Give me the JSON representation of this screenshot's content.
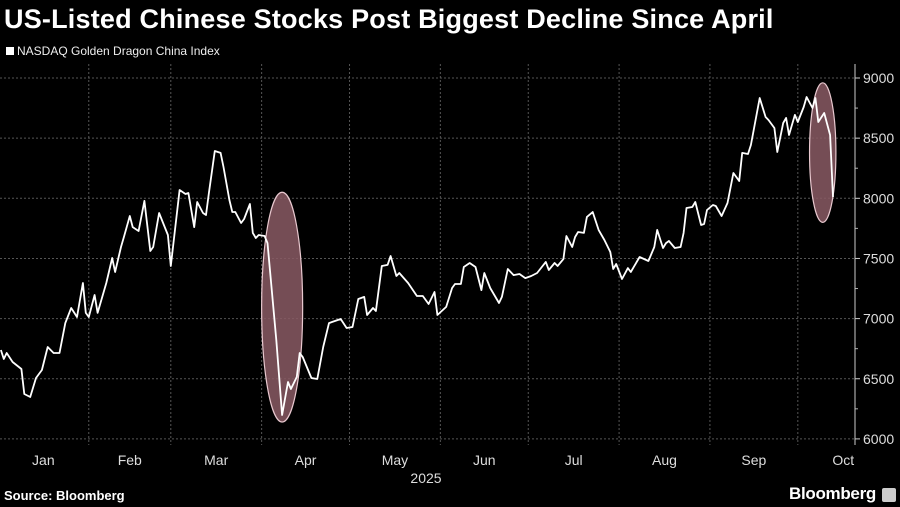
{
  "header": {
    "title": "US-Listed Chinese Stocks Post Biggest Decline Since April"
  },
  "footer": {
    "source": "Source: Bloomberg",
    "brand": "Bloomberg"
  },
  "colors": {
    "background": "#000000",
    "line": "#ffffff",
    "highlight": "#8a5a64",
    "grid": "#555555"
  },
  "chart_data": {
    "type": "line",
    "title": "US-Listed Chinese Stocks Post Biggest Decline Since April",
    "xlabel": "2025",
    "ylabel": "",
    "ylim": [
      5950,
      9100
    ],
    "yticks": [
      6000,
      6500,
      7000,
      7500,
      8000,
      8500,
      9000
    ],
    "ytick_labels": [
      "6000",
      "6500",
      "7000",
      "7500",
      "8000",
      "8500",
      "9000"
    ],
    "x_unit": "day of year 2025",
    "months": [
      {
        "label": "Jan",
        "start": 1
      },
      {
        "label": "Feb",
        "start": 32
      },
      {
        "label": "Mar",
        "start": 60
      },
      {
        "label": "Apr",
        "start": 91
      },
      {
        "label": "May",
        "start": 121
      },
      {
        "label": "Jun",
        "start": 152
      },
      {
        "label": "Jul",
        "start": 182
      },
      {
        "label": "Aug",
        "start": 213
      },
      {
        "label": "Sep",
        "start": 244
      },
      {
        "label": "Oct",
        "start": 274
      }
    ],
    "year_label": "2025",
    "grid": true,
    "legend": {
      "position": "top-left",
      "entries": [
        "NASDAQ Golden Dragon China Index"
      ]
    },
    "series": [
      {
        "name": "NASDAQ Golden Dragon China Index",
        "x": [
          2,
          3,
          4,
          6,
          9,
          10,
          12,
          14,
          16,
          18,
          20,
          22,
          24,
          26,
          28,
          30,
          31,
          32,
          34,
          35,
          38,
          40,
          41,
          43,
          44,
          46,
          47,
          49,
          51,
          53,
          54,
          56,
          59,
          60,
          63,
          65,
          66,
          68,
          69,
          71,
          72,
          73,
          75,
          77,
          78,
          80,
          81,
          82,
          84,
          85,
          87,
          88,
          89,
          90,
          92,
          93,
          96,
          98,
          100,
          101,
          103,
          104,
          105,
          108,
          110,
          112,
          114,
          115,
          118,
          120,
          122,
          124,
          126,
          127,
          129,
          130,
          132,
          134,
          135,
          137,
          138,
          141,
          144,
          146,
          148,
          150,
          151,
          154,
          156,
          157,
          159,
          160,
          162,
          164,
          166,
          167,
          169,
          172,
          173,
          175,
          177,
          179,
          181,
          183,
          185,
          188,
          189,
          191,
          192,
          194,
          195,
          197,
          198,
          199,
          201,
          202,
          204,
          206,
          208,
          210,
          211,
          212,
          214,
          216,
          217,
          220,
          223,
          225,
          226,
          228,
          229,
          230,
          232,
          234,
          235,
          236,
          238,
          239,
          241,
          242,
          243,
          245,
          246,
          248,
          250,
          252,
          254,
          255,
          257,
          258,
          261,
          263,
          264,
          266,
          267,
          269,
          270,
          271,
          273,
          274,
          276,
          277,
          279,
          280,
          281,
          283,
          285,
          286
        ],
        "values": [
          6739,
          6664,
          6714,
          6639,
          6581,
          6373,
          6348,
          6506,
          6573,
          6764,
          6714,
          6714,
          6963,
          7088,
          7013,
          7296,
          7047,
          7013,
          7196,
          7047,
          7296,
          7504,
          7387,
          7595,
          7678,
          7853,
          7761,
          7728,
          7978,
          7562,
          7595,
          7878,
          7695,
          7437,
          8069,
          8036,
          8044,
          7761,
          7969,
          7878,
          7861,
          8044,
          8393,
          8377,
          8260,
          7986,
          7886,
          7886,
          7795,
          7828,
          7953,
          7712,
          7670,
          7695,
          7687,
          7628,
          6822,
          6199,
          6473,
          6415,
          6515,
          6714,
          6681,
          6506,
          6498,
          6764,
          6963,
          6972,
          6997,
          6922,
          6930,
          7163,
          7180,
          7030,
          7088,
          7063,
          7437,
          7446,
          7520,
          7354,
          7379,
          7296,
          7188,
          7188,
          7121,
          7221,
          7030,
          7097,
          7254,
          7288,
          7288,
          7429,
          7462,
          7429,
          7237,
          7379,
          7254,
          7130,
          7180,
          7412,
          7362,
          7371,
          7337,
          7354,
          7379,
          7471,
          7404,
          7462,
          7437,
          7495,
          7687,
          7595,
          7678,
          7720,
          7712,
          7845,
          7886,
          7737,
          7653,
          7554,
          7412,
          7454,
          7329,
          7420,
          7387,
          7512,
          7479,
          7595,
          7737,
          7587,
          7628,
          7645,
          7587,
          7595,
          7712,
          7919,
          7928,
          7969,
          7778,
          7786,
          7903,
          7944,
          7936,
          7853,
          7961,
          8210,
          8144,
          8377,
          8368,
          8443,
          8834,
          8676,
          8651,
          8584,
          8385,
          8626,
          8668,
          8526,
          8693,
          8634,
          8759,
          8842,
          8751,
          8834,
          8634,
          8709,
          8526,
          8011
        ]
      }
    ],
    "annotations": [
      {
        "type": "highlight-ellipse",
        "x_range": [
          91,
          105
        ],
        "y_range": [
          6140,
          8050
        ]
      },
      {
        "type": "highlight-ellipse",
        "x_range": [
          278,
          287
        ],
        "y_range": [
          7800,
          8960
        ]
      }
    ]
  }
}
